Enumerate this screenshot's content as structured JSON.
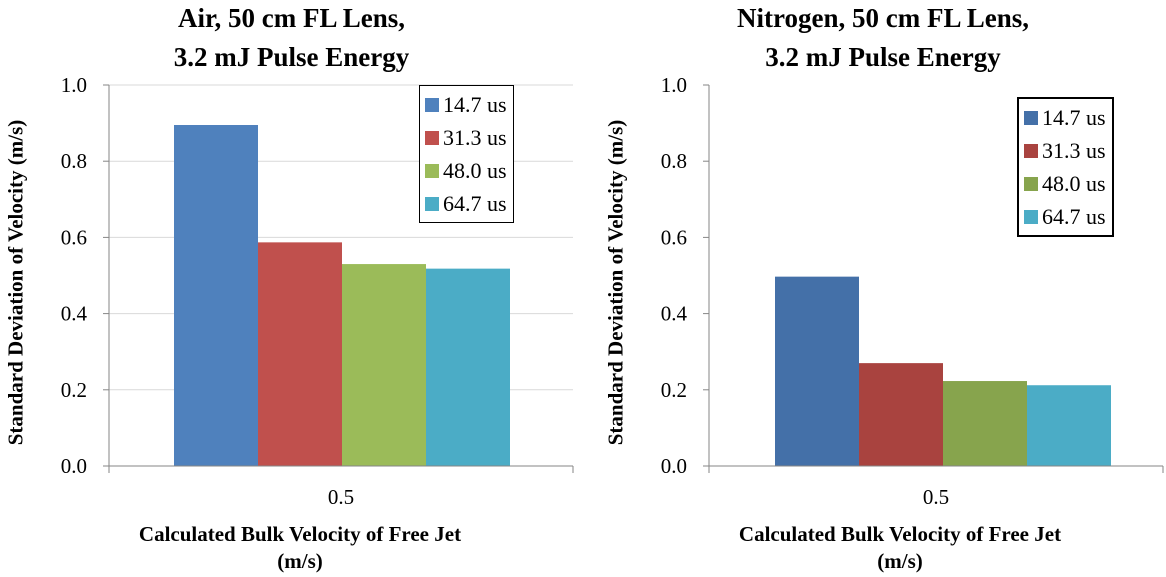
{
  "chart_data": [
    {
      "type": "bar",
      "title_line1": "Air, 50 cm FL Lens,",
      "title_line2": "3.2 mJ Pulse Energy",
      "xlabel_line1": "Calculated Bulk Velocity of Free Jet",
      "xlabel_line2": "(m/s)",
      "ylabel": "Standard Deviation of Velocity (m/s)",
      "categories": [
        "0.5"
      ],
      "ylim": [
        0,
        1.0
      ],
      "yticks": [
        "0.0",
        "0.2",
        "0.4",
        "0.6",
        "0.8",
        "1.0"
      ],
      "grid": true,
      "legend_position": "top-right",
      "series": [
        {
          "name": "14.7 us",
          "values": [
            0.895
          ],
          "color": "#4F81BD"
        },
        {
          "name": "31.3 us",
          "values": [
            0.587
          ],
          "color": "#C0504D"
        },
        {
          "name": "48.0 us",
          "values": [
            0.53
          ],
          "color": "#9BBB59"
        },
        {
          "name": "64.7 us",
          "values": [
            0.518
          ],
          "color": "#4BACC6"
        }
      ]
    },
    {
      "type": "bar",
      "title_line1": "Nitrogen, 50 cm FL Lens,",
      "title_line2": "3.2 mJ Pulse Energy",
      "xlabel_line1": "Calculated Bulk Velocity of Free Jet",
      "xlabel_line2": "(m/s)",
      "ylabel": "Standard Deviation of Velocity (m/s)",
      "categories": [
        "0.5"
      ],
      "ylim": [
        0,
        1.0
      ],
      "yticks": [
        "0.0",
        "0.2",
        "0.4",
        "0.6",
        "0.8",
        "1.0"
      ],
      "grid": false,
      "legend_position": "top-right",
      "series": [
        {
          "name": "14.7 us",
          "values": [
            0.497
          ],
          "color": "#4470A8"
        },
        {
          "name": "31.3 us",
          "values": [
            0.27
          ],
          "color": "#A9433F"
        },
        {
          "name": "48.0 us",
          "values": [
            0.223
          ],
          "color": "#87A44D"
        },
        {
          "name": "64.7 us",
          "values": [
            0.212
          ],
          "color": "#4BACC6"
        }
      ]
    }
  ]
}
